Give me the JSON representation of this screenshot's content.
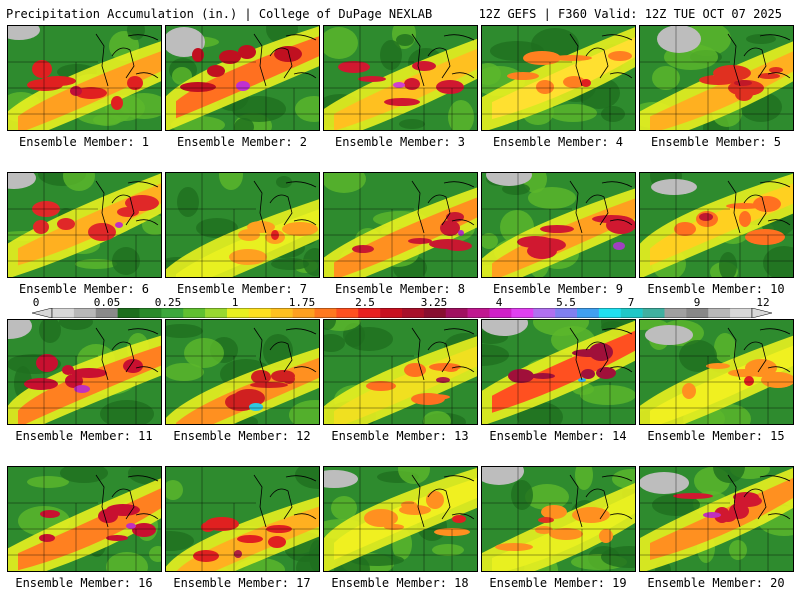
{
  "header": {
    "title": "Precipitation Accumulation (in.) | College of DuPage NEXLAB",
    "run_info": "12Z GEFS | F360 Valid: 12Z TUE OCT 07 2025"
  },
  "label_prefix": "Ensemble Member: ",
  "members": [
    {
      "number": "1",
      "label": "Ensemble Member: 1",
      "core": "#e02020",
      "edge": "#ffa020",
      "hot": "#c0103a"
    },
    {
      "number": "2",
      "label": "Ensemble Member: 2",
      "core": "#c01020",
      "edge": "#ff7020",
      "hot": "#c030d0"
    },
    {
      "number": "3",
      "label": "Ensemble Member: 3",
      "core": "#d01830",
      "edge": "#ffc020",
      "hot": "#d040d0"
    },
    {
      "number": "4",
      "label": "Ensemble Member: 4",
      "core": "#ff8020",
      "edge": "#ffe030",
      "hot": "#e02020"
    },
    {
      "number": "5",
      "label": "Ensemble Member: 5",
      "core": "#e03020",
      "edge": "#ffb020",
      "hot": "#c01828"
    },
    {
      "number": "6",
      "label": "Ensemble Member: 6",
      "core": "#e02828",
      "edge": "#ffb020",
      "hot": "#c030c0"
    },
    {
      "number": "7",
      "label": "Ensemble Member: 7",
      "core": "#ffa020",
      "edge": "#e8f020",
      "hot": "#e02020"
    },
    {
      "number": "8",
      "label": "Ensemble Member: 8",
      "core": "#c81830",
      "edge": "#ff9020",
      "hot": "#b030c0"
    },
    {
      "number": "9",
      "label": "Ensemble Member: 9",
      "core": "#d01830",
      "edge": "#ffa020",
      "hot": "#a040c0"
    },
    {
      "number": "10",
      "label": "Ensemble Member: 10",
      "core": "#ff7020",
      "edge": "#ffd020",
      "hot": "#c01830"
    },
    {
      "number": "11",
      "label": "Ensemble Member: 11",
      "core": "#c81030",
      "edge": "#ff8020",
      "hot": "#c030c0"
    },
    {
      "number": "12",
      "label": "Ensemble Member: 12",
      "core": "#d02020",
      "edge": "#ff9020",
      "hot": "#30c8e0"
    },
    {
      "number": "13",
      "label": "Ensemble Member: 13",
      "core": "#ff7020",
      "edge": "#f0e020",
      "hot": "#b02040"
    },
    {
      "number": "14",
      "label": "Ensemble Member: 14",
      "core": "#a0103a",
      "edge": "#ff5020",
      "hot": "#30b0f0"
    },
    {
      "number": "15",
      "label": "Ensemble Member: 15",
      "core": "#ff9020",
      "edge": "#f0f020",
      "hot": "#e02020"
    },
    {
      "number": "16",
      "label": "Ensemble Member: 16",
      "core": "#c81030",
      "edge": "#ff8020",
      "hot": "#c030c0"
    },
    {
      "number": "17",
      "label": "Ensemble Member: 17",
      "core": "#e02020",
      "edge": "#ffb020",
      "hot": "#b02040"
    },
    {
      "number": "18",
      "label": "Ensemble Member: 18",
      "core": "#ff9020",
      "edge": "#f0f020",
      "hot": "#e02020"
    },
    {
      "number": "19",
      "label": "Ensemble Member: 19",
      "core": "#ff9020",
      "edge": "#e8f020",
      "hot": "#e03020"
    },
    {
      "number": "20",
      "label": "Ensemble Member: 20",
      "core": "#d01830",
      "edge": "#ff9020",
      "hot": "#c030c0"
    }
  ],
  "colorbar": {
    "tick_labels": [
      "0",
      "0.05",
      "0.25",
      "1",
      "1.75",
      "2.5",
      "3.25",
      "4",
      "5.5",
      "7",
      "9",
      "12"
    ],
    "colors": [
      "#d8d8d8",
      "#b8b8b8",
      "#8a8a8a",
      "#1d6e1d",
      "#2a8a2a",
      "#3ca83c",
      "#60c030",
      "#98d830",
      "#e8f020",
      "#ffe020",
      "#ffc020",
      "#ffa020",
      "#ff7820",
      "#ff5020",
      "#e82020",
      "#c81020",
      "#a8102a",
      "#880f30",
      "#a01060",
      "#c01890",
      "#d020c8",
      "#e040f0",
      "#b070f0",
      "#8080f0",
      "#40a0f0",
      "#20e0f0",
      "#20c8c8",
      "#40b0a0",
      "#a0a0a0",
      "#888888",
      "#b8b8b8",
      "#d8d8d8"
    ]
  }
}
